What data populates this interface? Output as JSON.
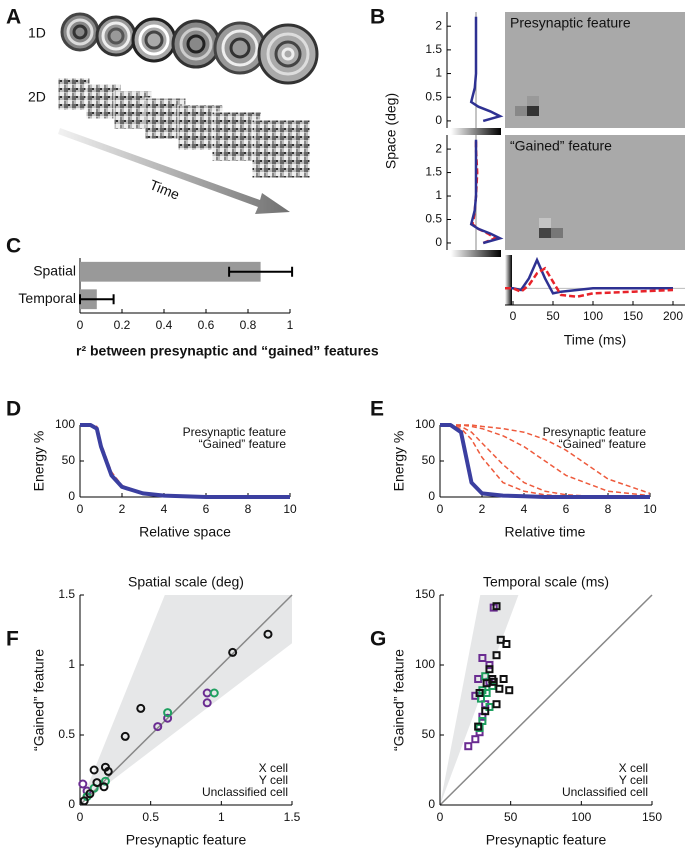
{
  "panel_labels": [
    "A",
    "B",
    "C",
    "D",
    "E",
    "F",
    "G"
  ],
  "stimulus": {
    "rows": [
      "1D",
      "2D"
    ],
    "arrow_label": "Time"
  },
  "chart_data": [
    {
      "type": "profile",
      "y_label": "Space (deg)",
      "x_label": "Time (ms)",
      "ylim": [
        -0.15,
        2.3
      ],
      "yticks": [
        0,
        0.5,
        1,
        1.5,
        2
      ],
      "xlim": [
        -10,
        215
      ],
      "xticks": [
        0,
        50,
        100,
        150,
        200
      ],
      "profile_lim": [
        -1,
        1
      ],
      "trace_lim": [
        -0.5,
        1
      ],
      "space": [
        0,
        0.1,
        0.2,
        0.3,
        0.4,
        0.5,
        0.7,
        1,
        1.5,
        2,
        2.2
      ],
      "x": [
        -10,
        0,
        10,
        20,
        30,
        40,
        50,
        60,
        80,
        100,
        150,
        200
      ],
      "series": [
        {
          "name": "Presynaptic feature",
          "color": "#2e3192",
          "dash": false,
          "profile": [
            0.3,
            1,
            0.6,
            0.1,
            -0.2,
            -0.15,
            -0.05,
            0,
            0,
            0,
            0
          ],
          "values": [
            0,
            0,
            -0.05,
            0.3,
            0.85,
            0.3,
            -0.15,
            -0.1,
            -0.05,
            0,
            0,
            0
          ]
        },
        {
          "name": "“Gained” feature",
          "color": "#e8232a",
          "dash": true,
          "profile": [
            0.3,
            0.8,
            0.5,
            0.1,
            -0.15,
            -0.1,
            -0.05,
            0,
            0.05,
            0,
            0
          ],
          "values": [
            0,
            0,
            -0.1,
            0.1,
            0.45,
            0.6,
            0.2,
            -0.2,
            -0.25,
            -0.15,
            -0.1,
            -0.05
          ]
        }
      ]
    },
    {
      "type": "hbar",
      "x_label": "r² between presynaptic and “gained” features",
      "categories": [
        "Spatial",
        "Temporal"
      ],
      "values": [
        0.86,
        0.08
      ],
      "errors": [
        0.15,
        0.08
      ],
      "color": "#999999",
      "xlim": [
        0,
        1
      ],
      "xticks": [
        0,
        0.2,
        0.4,
        0.6,
        0.8,
        1
      ]
    },
    {
      "type": "line",
      "x_label": "Relative space",
      "y_label": "Energy %",
      "xlim": [
        0,
        10
      ],
      "ylim": [
        0,
        100
      ],
      "xticks": [
        0,
        2,
        4,
        6,
        8,
        10
      ],
      "yticks": [
        0,
        50,
        100
      ],
      "x": [
        0,
        0.5,
        0.8,
        1,
        1.5,
        2,
        3,
        4,
        6,
        8,
        10
      ],
      "series": [
        {
          "name": "Presynaptic feature",
          "color": "#3b3fa0",
          "dash": false,
          "values": [
            100,
            100,
            95,
            70,
            30,
            14,
            5,
            2,
            0,
            0,
            0
          ]
        },
        {
          "name": "“Gained” feature",
          "color": "#ee5a3c",
          "dash": true,
          "values": [
            100,
            100,
            98,
            75,
            35,
            16,
            6,
            2,
            1,
            0,
            0
          ]
        }
      ]
    },
    {
      "type": "line",
      "x_label": "Relative time",
      "y_label": "Energy %",
      "xlim": [
        0,
        10
      ],
      "ylim": [
        0,
        100
      ],
      "xticks": [
        0,
        2,
        4,
        6,
        8,
        10
      ],
      "yticks": [
        0,
        50,
        100
      ],
      "x": [
        0,
        0.5,
        1,
        1.5,
        2,
        3,
        4,
        5,
        6,
        8,
        10
      ],
      "series": [
        {
          "name": "Presynaptic feature",
          "color": "#3b3fa0",
          "dash": false,
          "values": [
            100,
            100,
            90,
            20,
            5,
            2,
            1,
            0,
            0,
            0,
            0
          ]
        },
        {
          "name": "“Gained” feature",
          "color": "#ee5a3c",
          "dash": true,
          "values": [
            100,
            100,
            98,
            90,
            75,
            45,
            20,
            8,
            3,
            0,
            0
          ]
        },
        {
          "color": "#ee5a3c",
          "dash": true,
          "values": [
            100,
            100,
            100,
            98,
            95,
            85,
            70,
            50,
            30,
            8,
            2
          ]
        },
        {
          "color": "#ee5a3c",
          "dash": true,
          "values": [
            100,
            100,
            95,
            80,
            55,
            20,
            8,
            3,
            1,
            0,
            0
          ]
        },
        {
          "color": "#ee5a3c",
          "dash": true,
          "values": [
            100,
            100,
            100,
            100,
            98,
            95,
            90,
            80,
            65,
            25,
            5
          ]
        }
      ]
    },
    {
      "type": "scatter",
      "title": "Spatial scale (deg)",
      "x_label": "Presynaptic feature",
      "y_label": "“Gained” feature",
      "xlim": [
        0,
        1.5
      ],
      "ylim": [
        0,
        1.5
      ],
      "xticks": [
        0,
        0.5,
        1,
        1.5
      ],
      "yticks": [
        0,
        0.5,
        1,
        1.5
      ],
      "marker": "circle",
      "series": [
        {
          "name": "X cell",
          "color": "#6a2c91",
          "x": [
            0.9,
            0.9,
            0.62,
            0.55,
            0.02,
            0.05
          ],
          "values": [
            0.8,
            0.73,
            0.62,
            0.56,
            0.15,
            0.1
          ]
        },
        {
          "name": "Y cell",
          "color": "#1fa060",
          "x": [
            0.95,
            0.62,
            0.1,
            0.18,
            0.05
          ],
          "values": [
            0.8,
            0.66,
            0.12,
            0.17,
            0.06
          ]
        },
        {
          "name": "Unclassified cell",
          "color": "#111111",
          "x": [
            1.33,
            1.08,
            0.43,
            0.32,
            0.18,
            0.1,
            0.17,
            0.12,
            0.07,
            0.03,
            0.2
          ],
          "values": [
            1.22,
            1.09,
            0.69,
            0.49,
            0.27,
            0.25,
            0.13,
            0.16,
            0.08,
            0.03,
            0.24
          ]
        }
      ]
    },
    {
      "type": "scatter",
      "title": "Temporal scale (ms)",
      "x_label": "Presynaptic feature",
      "y_label": "“Gained” feature",
      "xlim": [
        0,
        150
      ],
      "ylim": [
        0,
        150
      ],
      "xticks": [
        0,
        50,
        100,
        150
      ],
      "yticks": [
        0,
        50,
        100,
        150
      ],
      "marker": "square",
      "series": [
        {
          "name": "X cell",
          "color": "#6a2c91",
          "x": [
            38,
            30,
            35,
            27,
            25,
            32,
            30,
            28,
            25,
            20,
            35
          ],
          "values": [
            141,
            105,
            100,
            90,
            78,
            72,
            63,
            52,
            47,
            42,
            88
          ]
        },
        {
          "name": "Y cell",
          "color": "#1fa060",
          "x": [
            30,
            28,
            32,
            37,
            33,
            29,
            35,
            30
          ],
          "values": [
            60,
            55,
            92,
            85,
            80,
            76,
            70,
            82
          ]
        },
        {
          "name": "Unclassified cell",
          "color": "#111111",
          "x": [
            40,
            43,
            47,
            40,
            35,
            45,
            38,
            33,
            42,
            49,
            40,
            32,
            27,
            28,
            37
          ],
          "values": [
            142,
            118,
            115,
            107,
            97,
            90,
            88,
            87,
            83,
            82,
            72,
            67,
            56,
            80,
            90
          ]
        }
      ]
    }
  ]
}
